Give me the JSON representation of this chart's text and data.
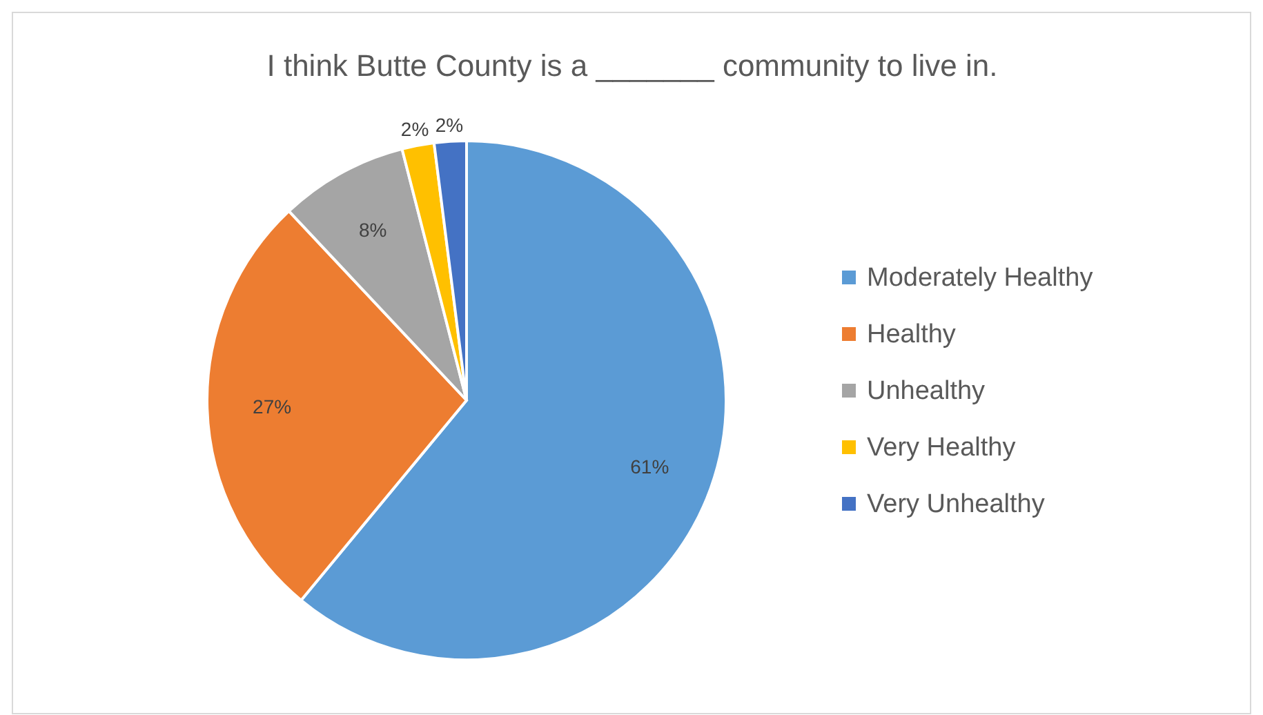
{
  "chart_data": {
    "type": "pie",
    "title": "I think Butte County is a _______ community to live in.",
    "categories": [
      "Moderately Healthy",
      "Healthy",
      "Unhealthy",
      "Very Healthy",
      "Very Unhealthy"
    ],
    "values": [
      61,
      27,
      8,
      2,
      2
    ],
    "colors": [
      "#5b9bd5",
      "#ed7d31",
      "#a5a5a5",
      "#ffc000",
      "#4472c4"
    ],
    "value_labels": [
      "61%",
      "27%",
      "8%",
      "2%",
      "2%"
    ],
    "legend": "right"
  }
}
